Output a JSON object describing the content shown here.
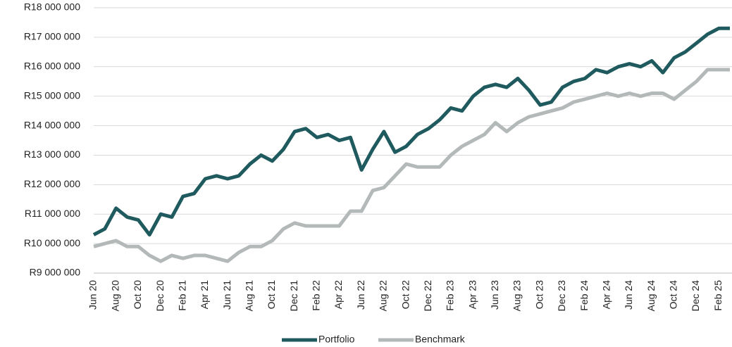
{
  "chart_data": {
    "type": "line",
    "categories": [
      "Jun 20",
      null,
      "Aug 20",
      null,
      "Oct 20",
      null,
      "Dec 20",
      null,
      "Feb 21",
      null,
      "Apr 21",
      null,
      "Jun 21",
      null,
      "Aug 21",
      null,
      "Oct 21",
      null,
      "Dec 21",
      null,
      "Feb 22",
      null,
      "Apr 22",
      null,
      "Jun 22",
      null,
      "Aug 22",
      null,
      "Oct 22",
      null,
      "Dec 22",
      null,
      "Feb 23",
      null,
      "Apr 23",
      null,
      "Jun 23",
      null,
      "Aug 23",
      null,
      "Oct 23",
      null,
      "Dec 23",
      null,
      "Feb 24",
      null,
      "Apr 24",
      null,
      "Jun 24",
      null,
      "Aug 24",
      null,
      "Oct 24",
      null,
      "Dec 24",
      null,
      "Feb 25",
      null
    ],
    "series": [
      {
        "name": "Portfolio",
        "color": "#1f5a5e",
        "values": [
          10300000,
          10500000,
          11200000,
          10900000,
          10800000,
          10300000,
          11000000,
          10900000,
          11600000,
          11700000,
          12200000,
          12300000,
          12200000,
          12300000,
          12700000,
          13000000,
          12800000,
          13200000,
          13800000,
          13900000,
          13600000,
          13700000,
          13500000,
          13600000,
          12500000,
          13200000,
          13800000,
          13100000,
          13300000,
          13700000,
          13900000,
          14200000,
          14600000,
          14500000,
          15000000,
          15300000,
          15400000,
          15300000,
          15600000,
          15200000,
          14700000,
          14800000,
          15300000,
          15500000,
          15600000,
          15900000,
          15800000,
          16000000,
          16100000,
          16000000,
          16200000,
          15800000,
          16300000,
          16500000,
          16800000,
          17100000,
          17300000,
          17300000
        ]
      },
      {
        "name": "Benchmark",
        "color": "#b3b8b9",
        "values": [
          9900000,
          10000000,
          10100000,
          9900000,
          9900000,
          9600000,
          9400000,
          9600000,
          9500000,
          9600000,
          9600000,
          9500000,
          9400000,
          9700000,
          9900000,
          9900000,
          10100000,
          10500000,
          10700000,
          10600000,
          10600000,
          10600000,
          10600000,
          11100000,
          11100000,
          11800000,
          11900000,
          12300000,
          12700000,
          12600000,
          12600000,
          12600000,
          13000000,
          13300000,
          13500000,
          13700000,
          14100000,
          13800000,
          14100000,
          14300000,
          14400000,
          14500000,
          14600000,
          14800000,
          14900000,
          15000000,
          15100000,
          15000000,
          15100000,
          15000000,
          15100000,
          15100000,
          14900000,
          15200000,
          15500000,
          15900000,
          15900000,
          15900000
        ]
      }
    ],
    "ylim": [
      9000000,
      18000000
    ],
    "yticks": [
      {
        "value": 9000000,
        "label": "R9 000 000"
      },
      {
        "value": 10000000,
        "label": "R10 000 000"
      },
      {
        "value": 11000000,
        "label": "R11 000 000"
      },
      {
        "value": 12000000,
        "label": "R12 000 000"
      },
      {
        "value": 13000000,
        "label": "R13 000 000"
      },
      {
        "value": 14000000,
        "label": "R14 000 000"
      },
      {
        "value": 15000000,
        "label": "R15 000 000"
      },
      {
        "value": 16000000,
        "label": "R16 000 000"
      },
      {
        "value": 17000000,
        "label": "R17 000 000"
      },
      {
        "value": 18000000,
        "label": "R18 000 000"
      }
    ],
    "grid": true,
    "legend": "bottom"
  }
}
